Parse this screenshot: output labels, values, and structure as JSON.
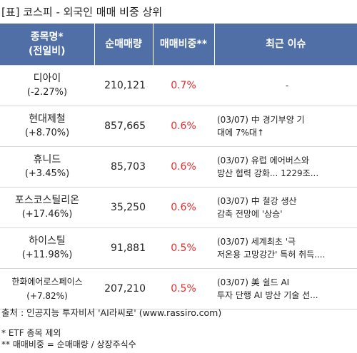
{
  "title": "[표] 코스피 - 외국인 매매 비중 상위",
  "table": {
    "headers": {
      "name_line1": "종목명*",
      "name_line2": "(전일비)",
      "volume": "순매매량",
      "ratio": "매매비중**",
      "issue": "최근 이슈"
    },
    "rows": [
      {
        "name": "디아이",
        "change": "(-2.27%)",
        "volume": "210,121",
        "ratio": "0.7%",
        "issue1": "-",
        "issue2": ""
      },
      {
        "name": "현대제철",
        "change": "(+8.70%)",
        "volume": "857,665",
        "ratio": "0.6%",
        "issue1": "(03/07) 中 경기부양 기",
        "issue2": "대에 7%대↑"
      },
      {
        "name": "휴니드",
        "change": "(+3.45%)",
        "volume": "85,703",
        "ratio": "0.6%",
        "issue1": "(03/07) 유럽 에어버스와",
        "issue2": "방산 협력 강화... 1229조..."
      },
      {
        "name": "포스코스틸리온",
        "change": "(+17.46%)",
        "volume": "35,250",
        "ratio": "0.6%",
        "issue1": "(03/07) 中 철강 생산",
        "issue2": "감축 전망에 '상승'"
      },
      {
        "name": "하이스틸",
        "change": "(+11.98%)",
        "volume": "91,881",
        "ratio": "0.5%",
        "issue1": "(03/07) 세계최초 '극",
        "issue2": "저온용 고망강간' 특허 취득...."
      },
      {
        "name": "한화에어로스페이스",
        "change": "(+7.82%)",
        "volume": "207,210",
        "ratio": "0.5%",
        "issue1": "(03/07) 美 쉴드 AI",
        "issue2": "투자 단행 AI 방산 기술 선..."
      }
    ]
  },
  "source": "출처 : 인공지능 투자비서 'AI라씨로' (www.rassiro.com)",
  "notes": {
    "etf": "* ETF 종목 제외",
    "ratio_def": "** 매매비중 = 순매매량 / 상장주식수"
  },
  "colors": {
    "header_bg": "#4f6fa6",
    "ratio_text": "#e52b2b"
  }
}
